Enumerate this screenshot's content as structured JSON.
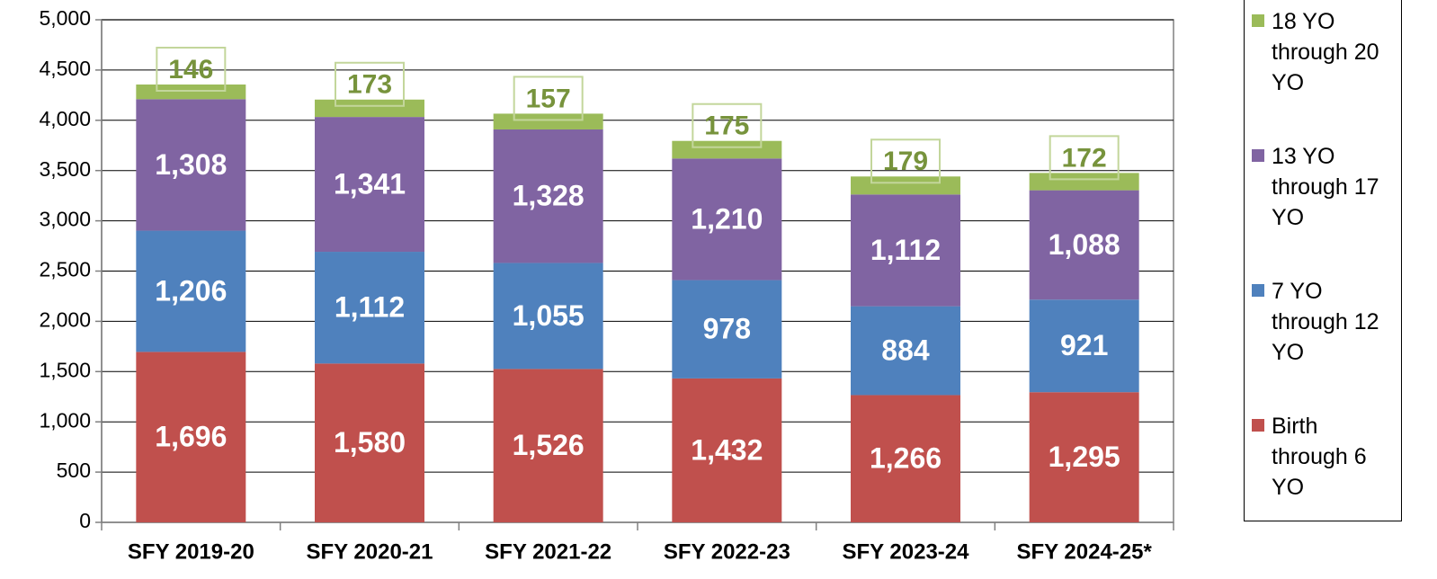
{
  "chart_data": {
    "type": "stacked_bar",
    "categories": [
      "SFY 2019-20",
      "SFY 2020-21",
      "SFY 2021-22",
      "SFY 2022-23",
      "SFY 2023-24",
      "SFY 2024-25*"
    ],
    "series": [
      {
        "name": "Birth through 6 YO",
        "color": "#c0504d",
        "values": [
          1696,
          1580,
          1526,
          1432,
          1266,
          1295
        ],
        "value_labels": [
          "1,696",
          "1,580",
          "1,526",
          "1,432",
          "1,266",
          "1,295"
        ]
      },
      {
        "name": "7 YO through 12 YO",
        "color": "#4f81bd",
        "values": [
          1206,
          1112,
          1055,
          978,
          884,
          921
        ],
        "value_labels": [
          "1,206",
          "1,112",
          "1,055",
          "978",
          "884",
          "921"
        ]
      },
      {
        "name": "13 YO through 17 YO",
        "color": "#8064a2",
        "values": [
          1308,
          1341,
          1328,
          1210,
          1112,
          1088
        ],
        "value_labels": [
          "1,308",
          "1,341",
          "1,328",
          "1,210",
          "1,112",
          "1,088"
        ]
      },
      {
        "name": "18 YO through 20 YO",
        "color": "#9bbb59",
        "values": [
          146,
          173,
          157,
          175,
          179,
          172
        ]
      }
    ],
    "ylim": [
      0,
      5000
    ],
    "yticks": [
      0,
      500,
      {
        "value": 1000,
        "label": "1,000"
      },
      {
        "value": 1500,
        "label": "1,500"
      },
      {
        "value": 2000,
        "label": "2,000"
      },
      {
        "value": 2500,
        "label": "2,500"
      },
      {
        "value": 3000,
        "label": "3,000"
      },
      {
        "value": 3500,
        "label": "3,500"
      },
      {
        "value": 4000,
        "label": "4,000"
      },
      {
        "value": 4500,
        "label": "4,500"
      },
      {
        "value": 5000,
        "label": "5,000"
      }
    ],
    "grid": true,
    "legend": "right"
  }
}
